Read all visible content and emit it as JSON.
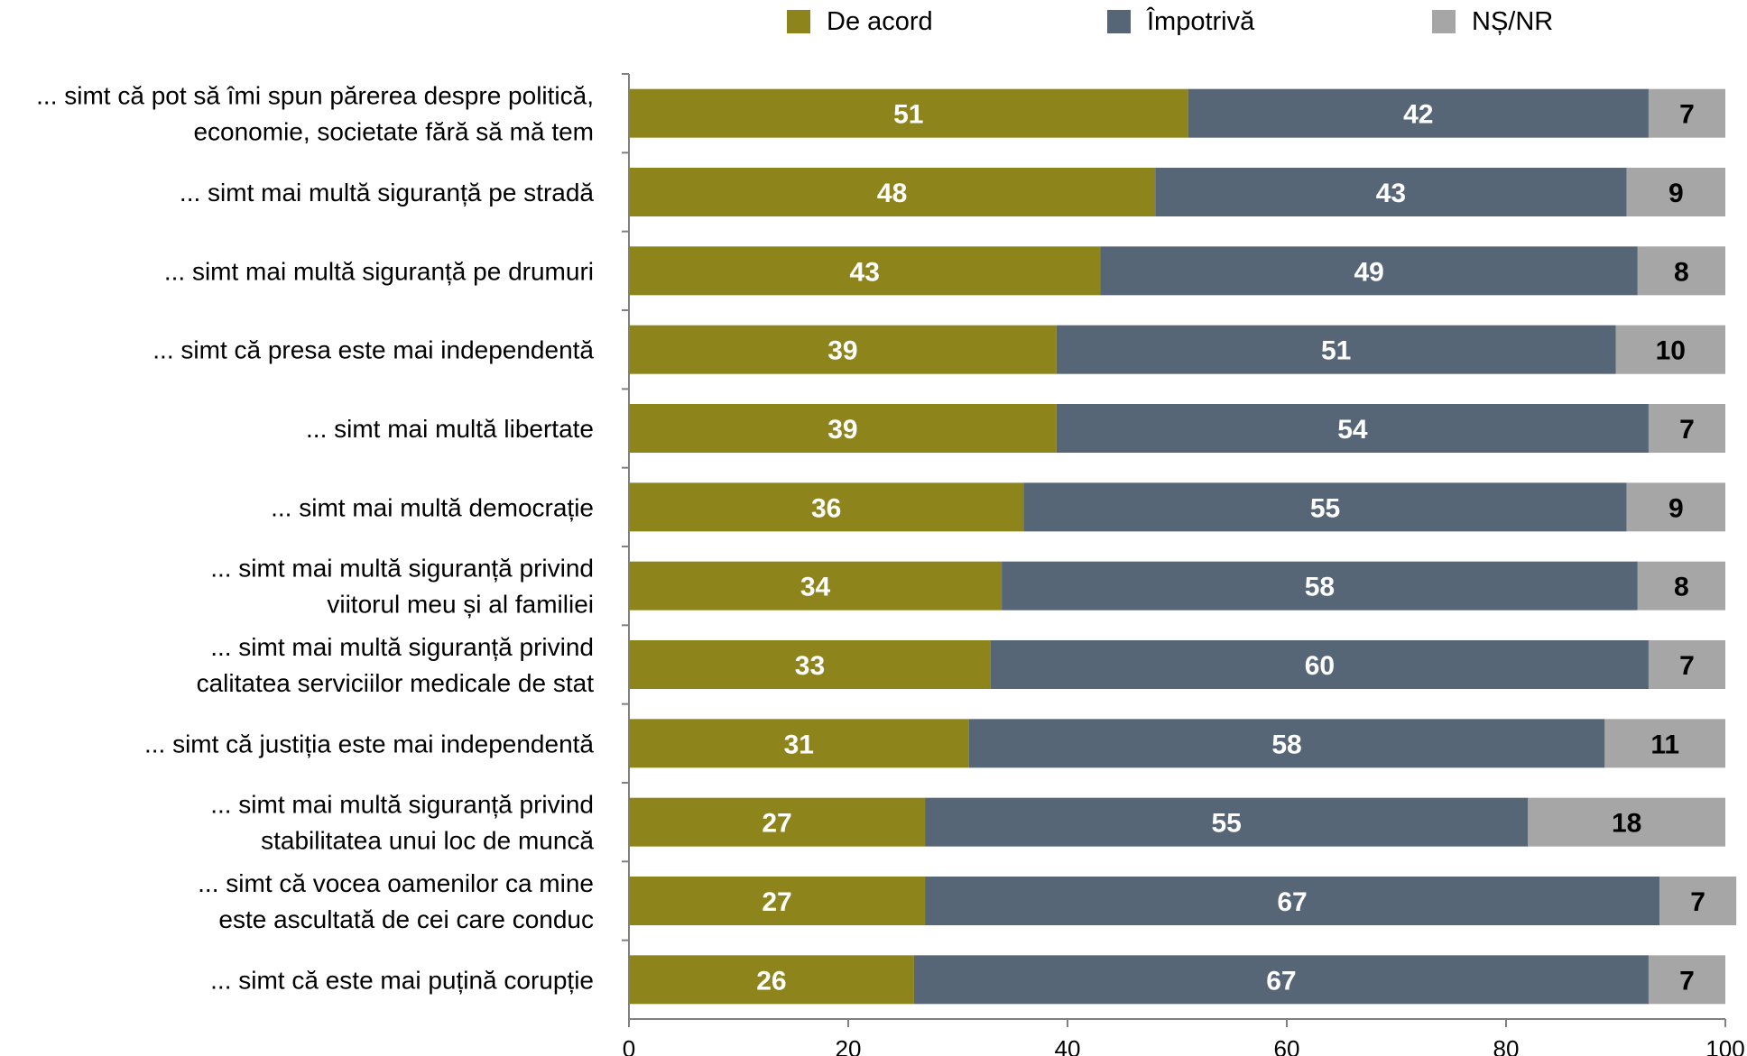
{
  "chart_data": {
    "type": "bar",
    "orientation": "horizontal",
    "stacked": true,
    "legend_position": "top",
    "grid": false,
    "xlim": [
      0,
      100
    ],
    "x_ticks": [
      "0",
      "20",
      "40",
      "60",
      "80",
      "100"
    ],
    "categories": [
      [
        "... simt că pot să îmi spun părerea despre politică,",
        "economie, societate fără să mă tem"
      ],
      [
        "... simt mai multă siguranță pe stradă"
      ],
      [
        "... simt mai multă siguranță pe drumuri"
      ],
      [
        "... simt că presa este mai independentă"
      ],
      [
        "... simt mai multă libertate"
      ],
      [
        "... simt mai multă democrație"
      ],
      [
        "... simt mai multă siguranță privind",
        "viitorul meu și al familiei"
      ],
      [
        "... simt mai multă siguranță privind",
        "calitatea serviciilor medicale de stat"
      ],
      [
        "... simt că justiția este mai independentă"
      ],
      [
        "... simt mai multă siguranță privind",
        "stabilitatea unui loc de muncă"
      ],
      [
        "... simt că vocea oamenilor ca mine",
        "este ascultată de cei care conduc"
      ],
      [
        "... simt că este mai puțină corupție"
      ]
    ],
    "series": [
      {
        "name": "De acord",
        "color": "#8E841C",
        "label_color": "#ffffff",
        "values": [
          51,
          48,
          43,
          39,
          39,
          36,
          34,
          33,
          31,
          27,
          27,
          26
        ]
      },
      {
        "name": "Împotrivă",
        "color": "#566677",
        "label_color": "#ffffff",
        "values": [
          42,
          43,
          49,
          51,
          54,
          55,
          58,
          60,
          58,
          55,
          67,
          67
        ]
      },
      {
        "name": "NȘ/NR",
        "color": "#A6A6A6",
        "label_color": "#000000",
        "values": [
          7,
          9,
          8,
          10,
          7,
          9,
          8,
          7,
          11,
          18,
          7,
          7
        ]
      }
    ]
  }
}
